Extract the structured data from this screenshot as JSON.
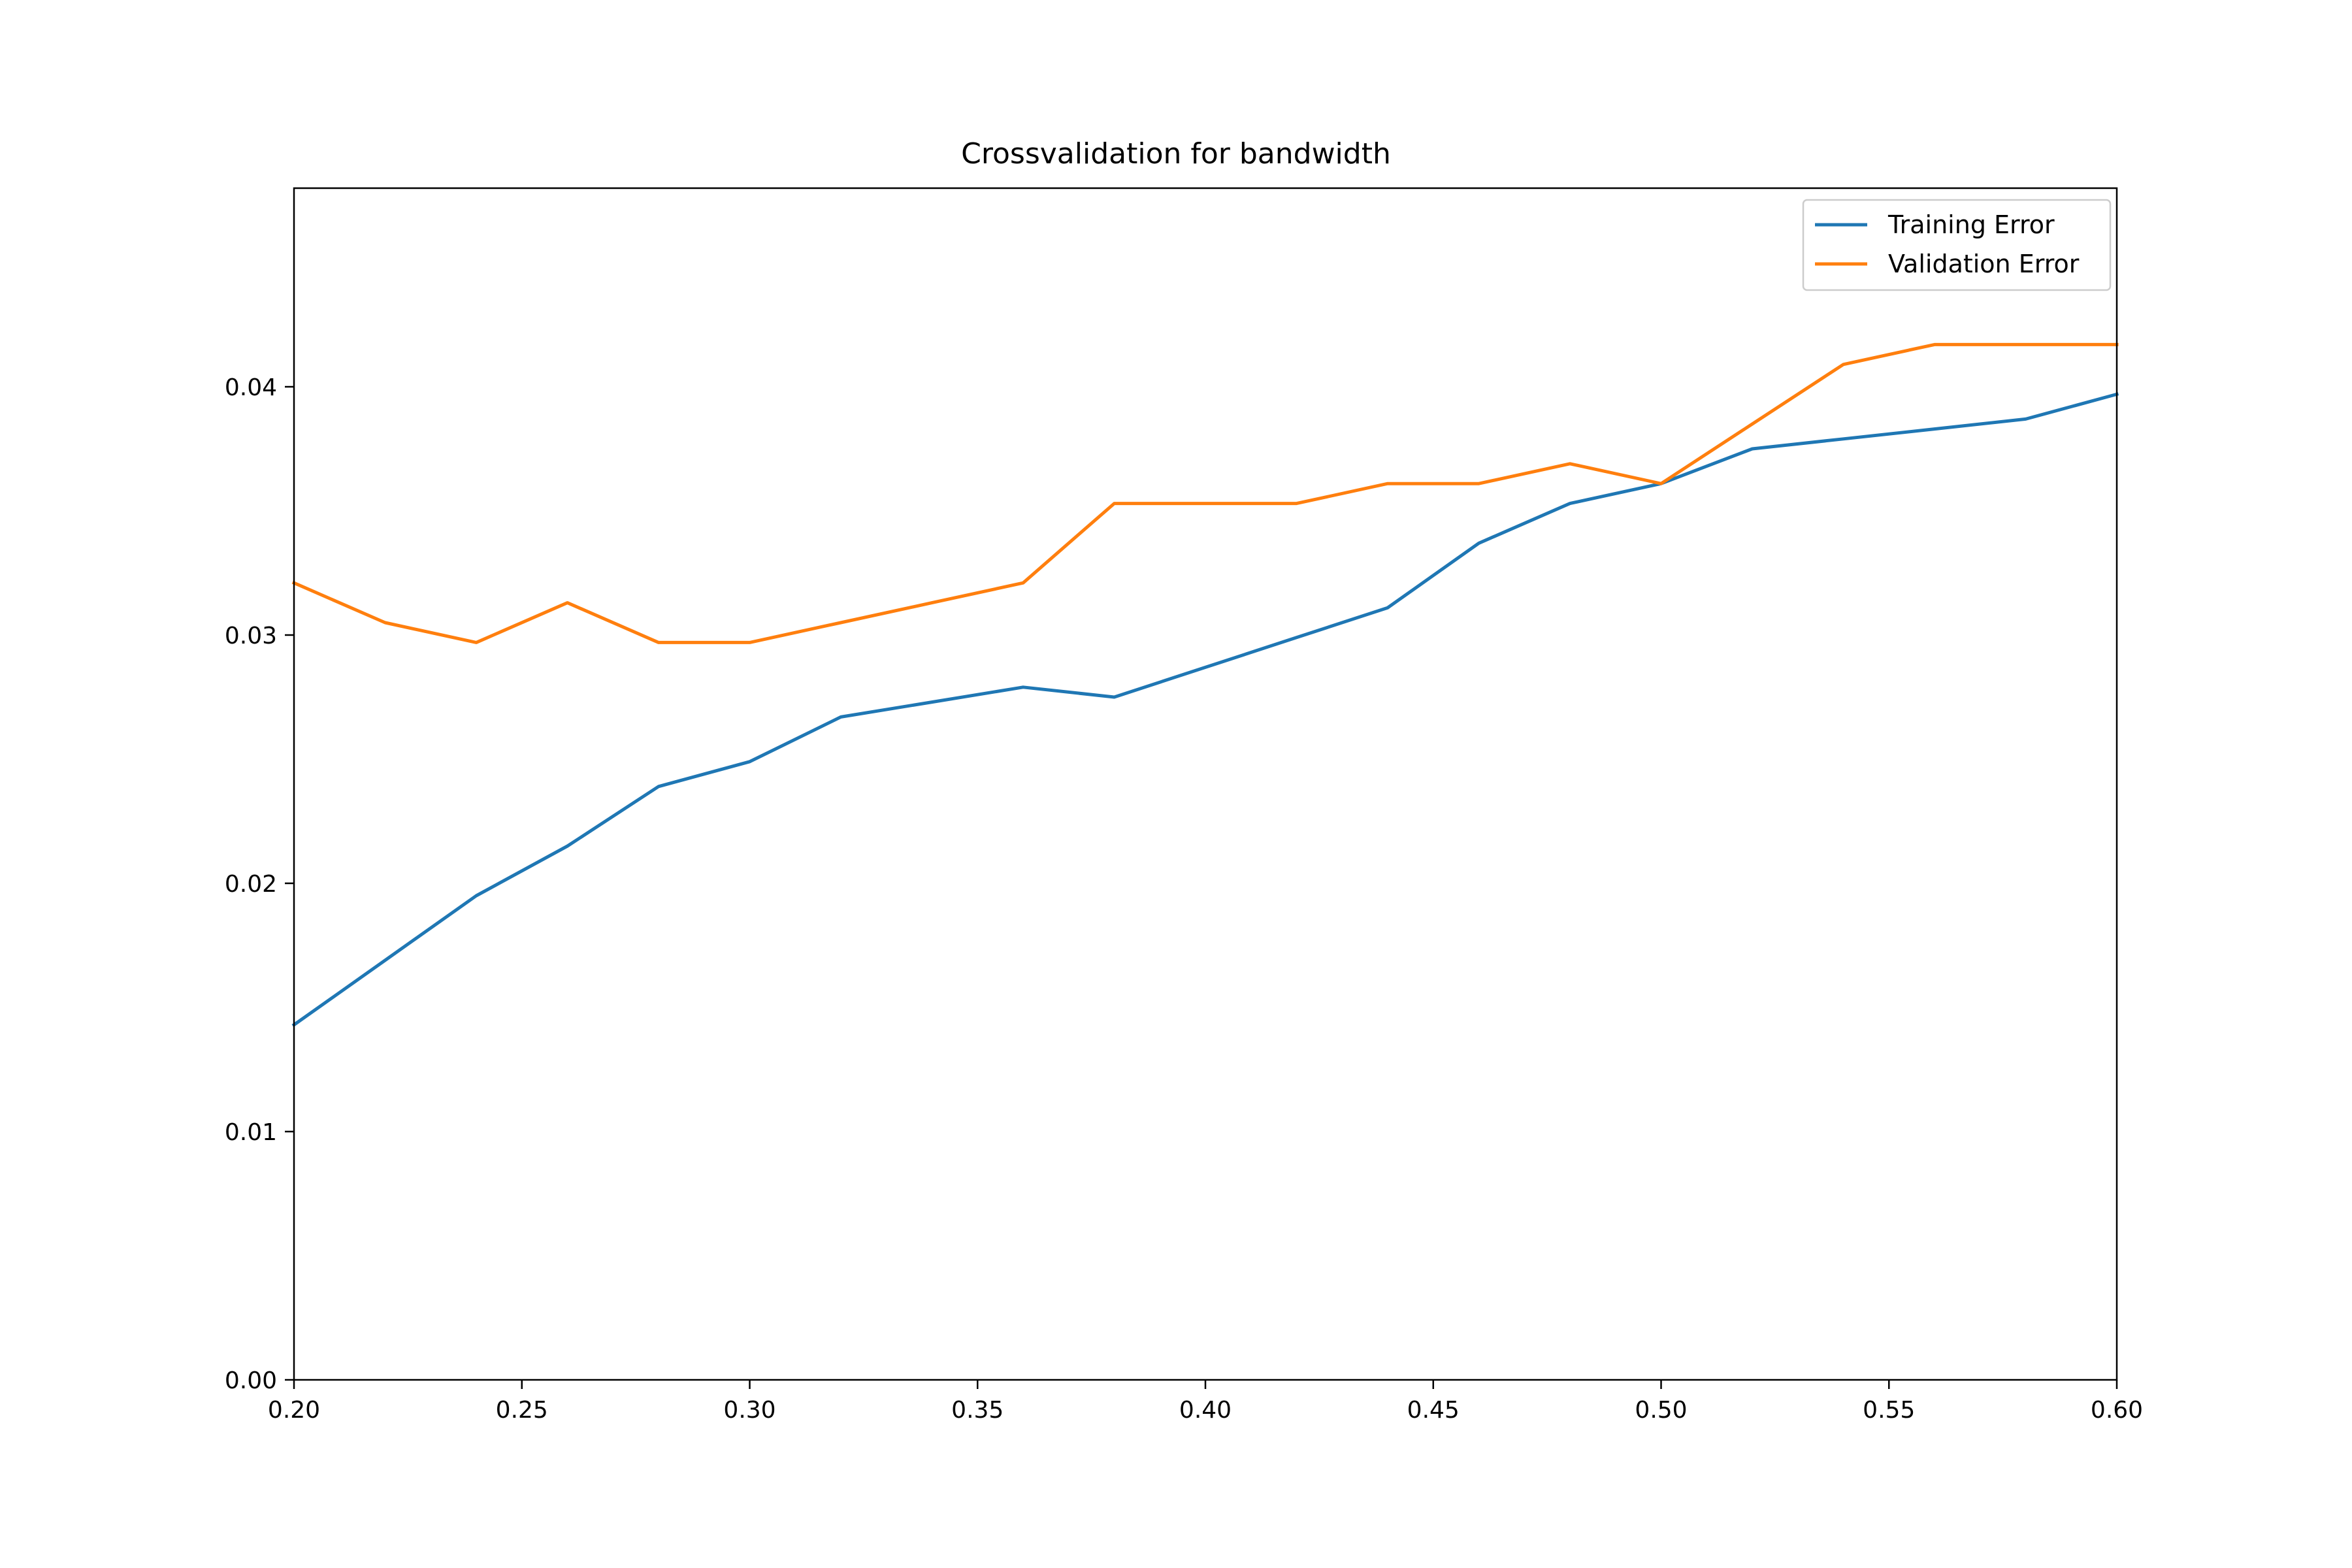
{
  "chart_data": {
    "type": "line",
    "title": "Crossvalidation for bandwidth",
    "xlabel": "",
    "ylabel": "",
    "xlim": [
      0.2,
      0.6
    ],
    "ylim": [
      0.0,
      0.048
    ],
    "xticks": [
      "0.20",
      "0.25",
      "0.30",
      "0.35",
      "0.40",
      "0.45",
      "0.50",
      "0.55",
      "0.60"
    ],
    "xtick_values": [
      0.2,
      0.25,
      0.3,
      0.35,
      0.4,
      0.45,
      0.5,
      0.55,
      0.6
    ],
    "yticks": [
      "0.00",
      "0.01",
      "0.02",
      "0.03",
      "0.04"
    ],
    "ytick_values": [
      0.0,
      0.01,
      0.02,
      0.03,
      0.04
    ],
    "grid": false,
    "legend_position": "top-right",
    "x": [
      0.2,
      0.22,
      0.24,
      0.26,
      0.28,
      0.3,
      0.32,
      0.34,
      0.36,
      0.38,
      0.4,
      0.42,
      0.44,
      0.46,
      0.48,
      0.5,
      0.52,
      0.54,
      0.56,
      0.58,
      0.6
    ],
    "series": [
      {
        "name": "Training Error",
        "color": "#1f77b4",
        "values": [
          0.0143,
          0.0169,
          0.0195,
          0.0215,
          0.0239,
          0.0249,
          0.0267,
          0.0273,
          0.0279,
          0.0275,
          0.0287,
          0.0299,
          0.0311,
          0.0337,
          0.0353,
          0.0361,
          0.0375,
          0.0379,
          0.0383,
          0.0387,
          0.0397
        ]
      },
      {
        "name": "Validation Error",
        "color": "#ff7f0e",
        "values": [
          0.0321,
          0.0305,
          0.0297,
          0.0313,
          0.0297,
          0.0297,
          0.0305,
          0.0313,
          0.0321,
          0.0353,
          0.0353,
          0.0353,
          0.0361,
          0.0361,
          0.0369,
          0.0361,
          0.0385,
          0.0409,
          0.0417,
          0.0417,
          0.0417
        ]
      }
    ]
  }
}
